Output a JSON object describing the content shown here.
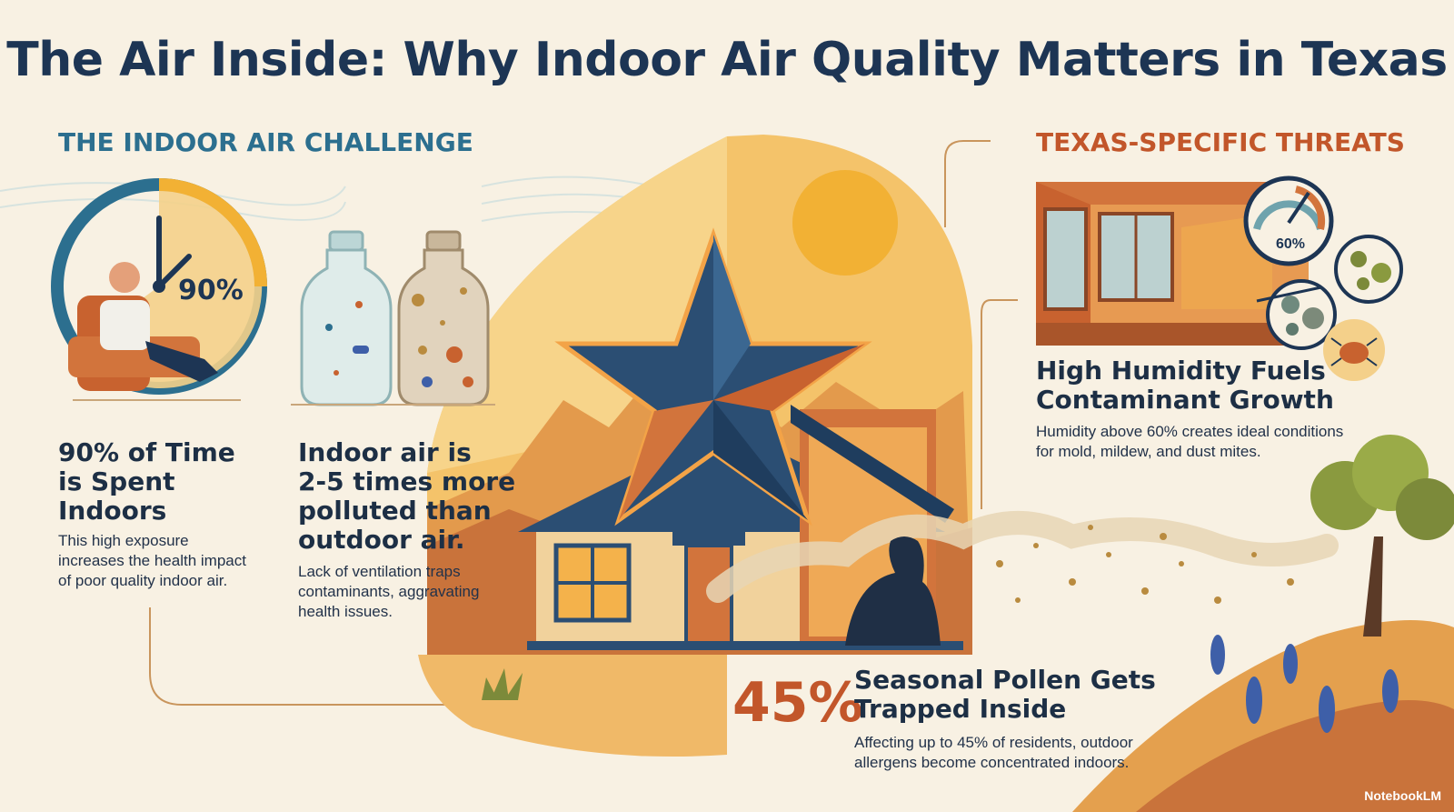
{
  "title": "The Air Inside: Why Indoor Air Quality Matters in Texas",
  "left_section": {
    "heading": "THE INDOOR AIR CHALLENGE",
    "clock_percent": "90%",
    "stat1": {
      "title_lines": [
        "90% of Time",
        "is Spent",
        "Indoors"
      ],
      "desc_lines": [
        "This high exposure",
        "increases the health impact",
        "of poor quality indoor air."
      ]
    },
    "stat2": {
      "title_lines": [
        "Indoor air is",
        "2-5 times more",
        "polluted than",
        "outdoor air."
      ],
      "desc_lines": [
        "Lack of ventilation traps",
        "contaminants, aggravating",
        "health issues."
      ]
    }
  },
  "right_section": {
    "heading": "TEXAS-SPECIFIC THREATS",
    "gauge_label": "60%",
    "humidity": {
      "title_lines": [
        "High Humidity Fuels",
        "Contaminant Growth"
      ],
      "desc_lines": [
        "Humidity above 60% creates ideal conditions",
        "for mold, mildew, and dust mites."
      ]
    }
  },
  "pollen": {
    "big_stat": "45%",
    "title_lines": [
      "Seasonal Pollen Gets",
      "Trapped Inside"
    ],
    "desc_lines": [
      "Affecting up to 45% of residents, outdoor",
      "allergens become concentrated indoors."
    ]
  },
  "brand": "NotebookLM",
  "colors": {
    "background": "#f8f1e3",
    "navy": "#1d3554",
    "accent_orange": "#c2562a",
    "teal_heading": "#2c6f8f",
    "sun": "#f2b134"
  },
  "icons": [
    "clock-icon",
    "armchair-person-icon",
    "clean-jar-icon",
    "polluted-jar-icon",
    "texas-star-house-icon",
    "sun-icon",
    "humidity-gauge-icon",
    "mold-spore-icon",
    "dust-mite-icon",
    "person-breathing-icon",
    "bluebonnet-icon",
    "tree-icon"
  ]
}
